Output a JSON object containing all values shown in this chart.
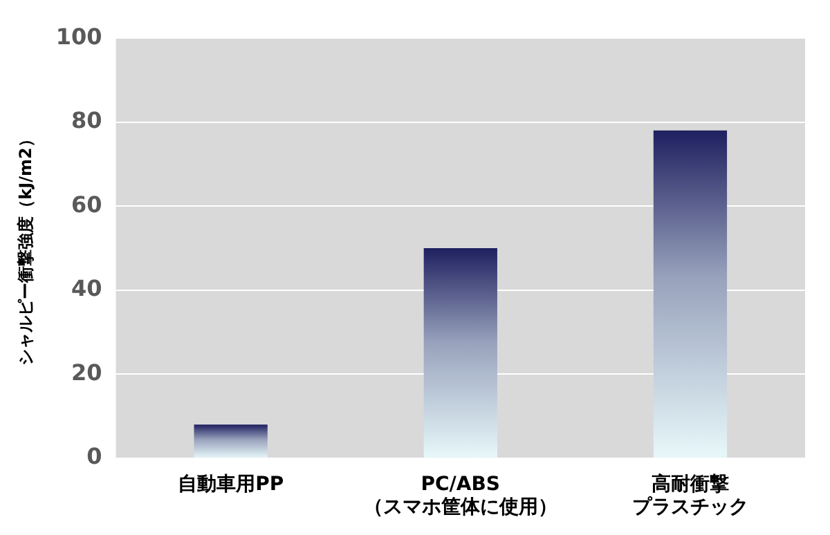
{
  "chart_data": {
    "type": "bar",
    "ylabel": "シャルピー衝撃強度（kJ/m2）",
    "categories": [
      "自動車用PP",
      "PC/ABS\n（スマホ筐体に使用）",
      "高耐衝撃プラスチック"
    ],
    "values": [
      8,
      50,
      78
    ],
    "color": "#1f2060",
    "ylim": [
      0,
      100
    ],
    "yticks": [
      0,
      20,
      40,
      60,
      80,
      100
    ],
    "grid": "y",
    "legend": false
  }
}
